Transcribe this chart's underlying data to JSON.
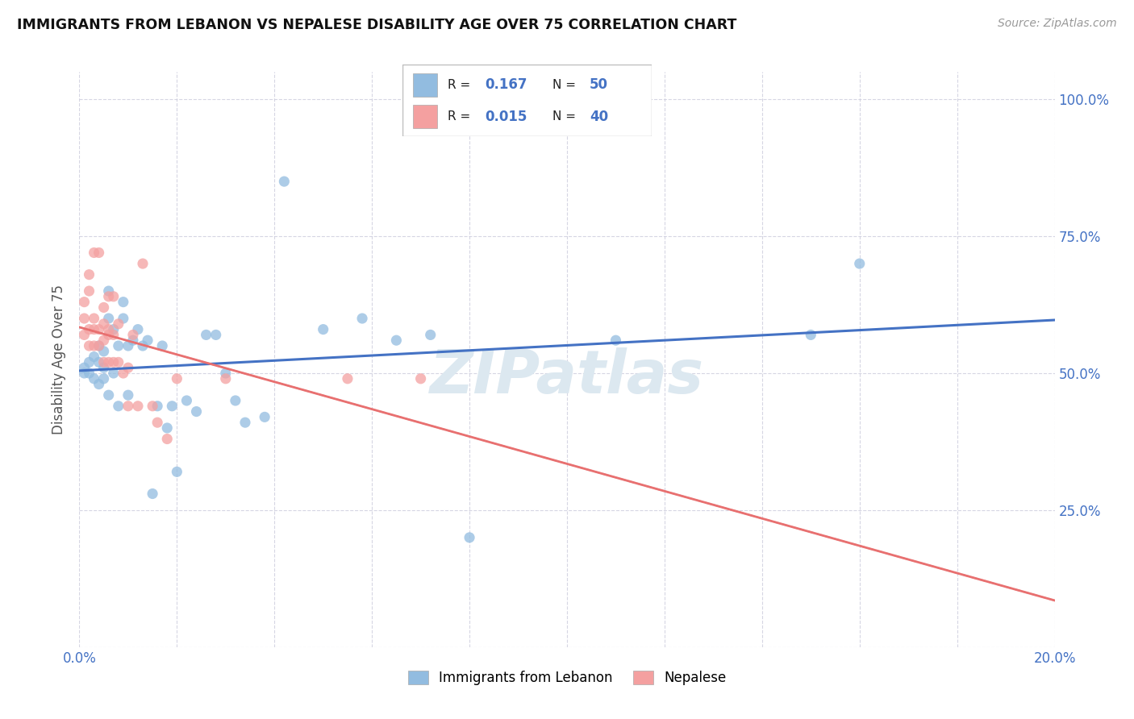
{
  "title": "IMMIGRANTS FROM LEBANON VS NEPALESE DISABILITY AGE OVER 75 CORRELATION CHART",
  "source": "Source: ZipAtlas.com",
  "ylabel_label": "Disability Age Over 75",
  "xlim": [
    0.0,
    0.2
  ],
  "ylim": [
    0.0,
    1.05
  ],
  "blue_color": "#92bce0",
  "pink_color": "#f4a0a0",
  "trendline_blue_color": "#4472c4",
  "trendline_pink_color": "#e87070",
  "watermark_color": "#c8d8e8",
  "bottom_legend_blue": "Immigrants from Lebanon",
  "bottom_legend_pink": "Nepalese",
  "blue_scatter_x": [
    0.001,
    0.001,
    0.002,
    0.002,
    0.003,
    0.003,
    0.004,
    0.004,
    0.004,
    0.005,
    0.005,
    0.005,
    0.006,
    0.006,
    0.006,
    0.007,
    0.007,
    0.008,
    0.008,
    0.009,
    0.009,
    0.01,
    0.01,
    0.011,
    0.012,
    0.013,
    0.014,
    0.015,
    0.016,
    0.017,
    0.018,
    0.019,
    0.02,
    0.022,
    0.024,
    0.026,
    0.028,
    0.03,
    0.032,
    0.034,
    0.038,
    0.042,
    0.05,
    0.058,
    0.065,
    0.072,
    0.08,
    0.11,
    0.15,
    0.16
  ],
  "blue_scatter_y": [
    0.51,
    0.5,
    0.52,
    0.5,
    0.53,
    0.49,
    0.48,
    0.52,
    0.55,
    0.49,
    0.51,
    0.54,
    0.46,
    0.6,
    0.65,
    0.58,
    0.5,
    0.44,
    0.55,
    0.6,
    0.63,
    0.46,
    0.55,
    0.56,
    0.58,
    0.55,
    0.56,
    0.28,
    0.44,
    0.55,
    0.4,
    0.44,
    0.32,
    0.45,
    0.43,
    0.57,
    0.57,
    0.5,
    0.45,
    0.41,
    0.42,
    0.85,
    0.58,
    0.6,
    0.56,
    0.57,
    0.2,
    0.56,
    0.57,
    0.7
  ],
  "pink_scatter_x": [
    0.001,
    0.001,
    0.001,
    0.002,
    0.002,
    0.002,
    0.002,
    0.003,
    0.003,
    0.003,
    0.003,
    0.004,
    0.004,
    0.004,
    0.005,
    0.005,
    0.005,
    0.005,
    0.006,
    0.006,
    0.006,
    0.006,
    0.007,
    0.007,
    0.007,
    0.008,
    0.008,
    0.009,
    0.01,
    0.01,
    0.011,
    0.012,
    0.013,
    0.015,
    0.016,
    0.018,
    0.02,
    0.03,
    0.055,
    0.07
  ],
  "pink_scatter_y": [
    0.57,
    0.6,
    0.63,
    0.65,
    0.68,
    0.58,
    0.55,
    0.6,
    0.72,
    0.58,
    0.55,
    0.72,
    0.58,
    0.55,
    0.62,
    0.59,
    0.56,
    0.52,
    0.64,
    0.58,
    0.52,
    0.57,
    0.52,
    0.64,
    0.57,
    0.59,
    0.52,
    0.5,
    0.44,
    0.51,
    0.57,
    0.44,
    0.7,
    0.44,
    0.41,
    0.38,
    0.49,
    0.49,
    0.49,
    0.49
  ]
}
